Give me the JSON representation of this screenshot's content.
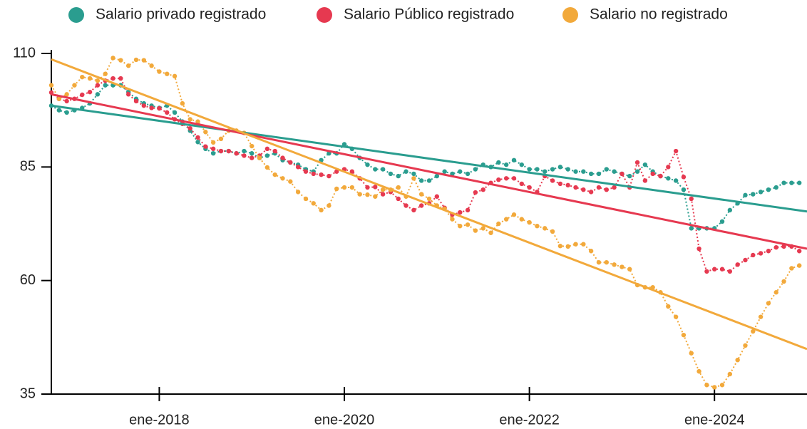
{
  "chart_data": {
    "type": "line",
    "xlim": [
      "2016-11",
      "2025-01"
    ],
    "xticks": [
      {
        "value": "2018-01",
        "label": "ene-2018"
      },
      {
        "value": "2020-01",
        "label": "ene-2020"
      },
      {
        "value": "2022-01",
        "label": "ene-2022"
      },
      {
        "value": "2024-01",
        "label": "ene-2024"
      }
    ],
    "ylim": [
      35,
      110
    ],
    "yticks": [
      35,
      60,
      85,
      110
    ],
    "legend": "top",
    "x": [
      "2016-11",
      "2016-12",
      "2017-01",
      "2017-02",
      "2017-03",
      "2017-04",
      "2017-05",
      "2017-06",
      "2017-07",
      "2017-08",
      "2017-09",
      "2017-10",
      "2017-11",
      "2017-12",
      "2018-01",
      "2018-02",
      "2018-03",
      "2018-04",
      "2018-05",
      "2018-06",
      "2018-07",
      "2018-08",
      "2018-09",
      "2018-10",
      "2018-11",
      "2018-12",
      "2019-01",
      "2019-02",
      "2019-03",
      "2019-04",
      "2019-05",
      "2019-06",
      "2019-07",
      "2019-08",
      "2019-09",
      "2019-10",
      "2019-11",
      "2019-12",
      "2020-01",
      "2020-02",
      "2020-03",
      "2020-04",
      "2020-05",
      "2020-06",
      "2020-07",
      "2020-08",
      "2020-09",
      "2020-10",
      "2020-11",
      "2020-12",
      "2021-01",
      "2021-02",
      "2021-03",
      "2021-04",
      "2021-05",
      "2021-06",
      "2021-07",
      "2021-08",
      "2021-09",
      "2021-10",
      "2021-11",
      "2021-12",
      "2022-01",
      "2022-02",
      "2022-03",
      "2022-04",
      "2022-05",
      "2022-06",
      "2022-07",
      "2022-08",
      "2022-09",
      "2022-10",
      "2022-11",
      "2022-12",
      "2023-01",
      "2023-02",
      "2023-03",
      "2023-04",
      "2023-05",
      "2023-06",
      "2023-07",
      "2023-08",
      "2023-09",
      "2023-10",
      "2023-11",
      "2023-12",
      "2024-01",
      "2024-02",
      "2024-03",
      "2024-04",
      "2024-05",
      "2024-06",
      "2024-07",
      "2024-08",
      "2024-09",
      "2024-10",
      "2024-11",
      "2024-12"
    ],
    "series": [
      {
        "name": "Salario privado registrado",
        "color": "#2a9d8f",
        "trend": [
          98.5,
          75.2
        ],
        "values": [
          98.5,
          97.5,
          97,
          97.5,
          98,
          99,
          101,
          103,
          103,
          103,
          101.5,
          100,
          99,
          98.5,
          98,
          98.5,
          97,
          95,
          93,
          90.5,
          89,
          88,
          88.5,
          88.5,
          88,
          88.5,
          88,
          87,
          87.5,
          88,
          86.5,
          86,
          85.5,
          84.5,
          84,
          86.5,
          88,
          88,
          90,
          89,
          87,
          85.5,
          84.5,
          84.5,
          83.5,
          83,
          84,
          83.5,
          82,
          82,
          83,
          84,
          83.5,
          84,
          83.5,
          84.5,
          85.5,
          85,
          86,
          85.5,
          86.5,
          85.5,
          84.5,
          84.5,
          84,
          84.5,
          85,
          84.5,
          84,
          84,
          83.5,
          83.5,
          84.5,
          84,
          83.5,
          83,
          84,
          85.5,
          84,
          83,
          82.5,
          82,
          80,
          71.5,
          71.5,
          71.5,
          71.5,
          73,
          75.5,
          77,
          78.8,
          79,
          79.5,
          80,
          80.5,
          81.5,
          81.5,
          81.5
        ]
      },
      {
        "name": "Salario Público registrado",
        "color": "#e63950",
        "trend": [
          101,
          67
        ],
        "values": [
          101.4,
          100,
          99.5,
          100,
          100.9,
          101.5,
          103,
          104,
          104.5,
          104.5,
          101,
          99.5,
          98.5,
          98,
          97.9,
          97,
          95.5,
          94.5,
          93.5,
          91.5,
          89.5,
          89,
          88.5,
          88.5,
          88,
          87.5,
          87,
          87.5,
          89,
          88.5,
          87,
          86,
          85,
          84,
          83.5,
          83.3,
          83,
          84,
          84.5,
          84,
          82.5,
          80.5,
          80.6,
          79,
          79.5,
          78,
          76.5,
          75.5,
          76.5,
          77,
          78.5,
          76,
          74.5,
          75,
          75.5,
          79.4,
          80,
          81.5,
          82.2,
          82.5,
          82.5,
          81.3,
          80.5,
          79.5,
          83,
          82,
          81.3,
          81,
          80.5,
          80,
          79.5,
          80.5,
          80,
          80.5,
          83.5,
          80.5,
          86,
          82,
          83.5,
          83,
          85,
          88.5,
          82.8,
          78,
          67,
          62,
          62.5,
          62.5,
          62,
          63.5,
          64.5,
          65.6,
          66,
          66.5,
          67.3,
          67.5,
          67.5,
          66.5
        ]
      },
      {
        "name": "Salario no registrado",
        "color": "#f2a93b",
        "trend": [
          108.7,
          44.9
        ],
        "values": [
          103,
          100,
          101,
          103,
          104.8,
          104.5,
          104,
          105.5,
          109,
          108.5,
          107.3,
          108.6,
          108.5,
          107.3,
          106,
          105.5,
          105,
          99,
          95.5,
          95,
          92.7,
          90.4,
          91.2,
          93,
          93,
          92.5,
          89.6,
          87,
          84.9,
          83.3,
          82.5,
          81.8,
          79.5,
          78,
          77,
          75.5,
          76.5,
          80.2,
          80.5,
          80.5,
          79,
          78.9,
          78.5,
          80,
          80,
          80.5,
          78.5,
          82.5,
          79,
          78,
          76.5,
          75.8,
          73.5,
          72,
          72.3,
          71,
          71.5,
          70.5,
          72.5,
          73.5,
          74.5,
          73.5,
          72.8,
          72,
          71.5,
          70.8,
          67.6,
          67.5,
          68,
          68,
          66.5,
          64,
          64,
          63.5,
          63,
          62.5,
          59,
          58.5,
          58.5,
          57.4,
          54.3,
          52,
          48,
          44,
          40,
          37,
          36.5,
          37,
          39.4,
          42.5,
          45.7,
          48.8,
          52,
          55,
          57.4,
          59.8,
          62.7,
          63.3
        ]
      }
    ]
  }
}
